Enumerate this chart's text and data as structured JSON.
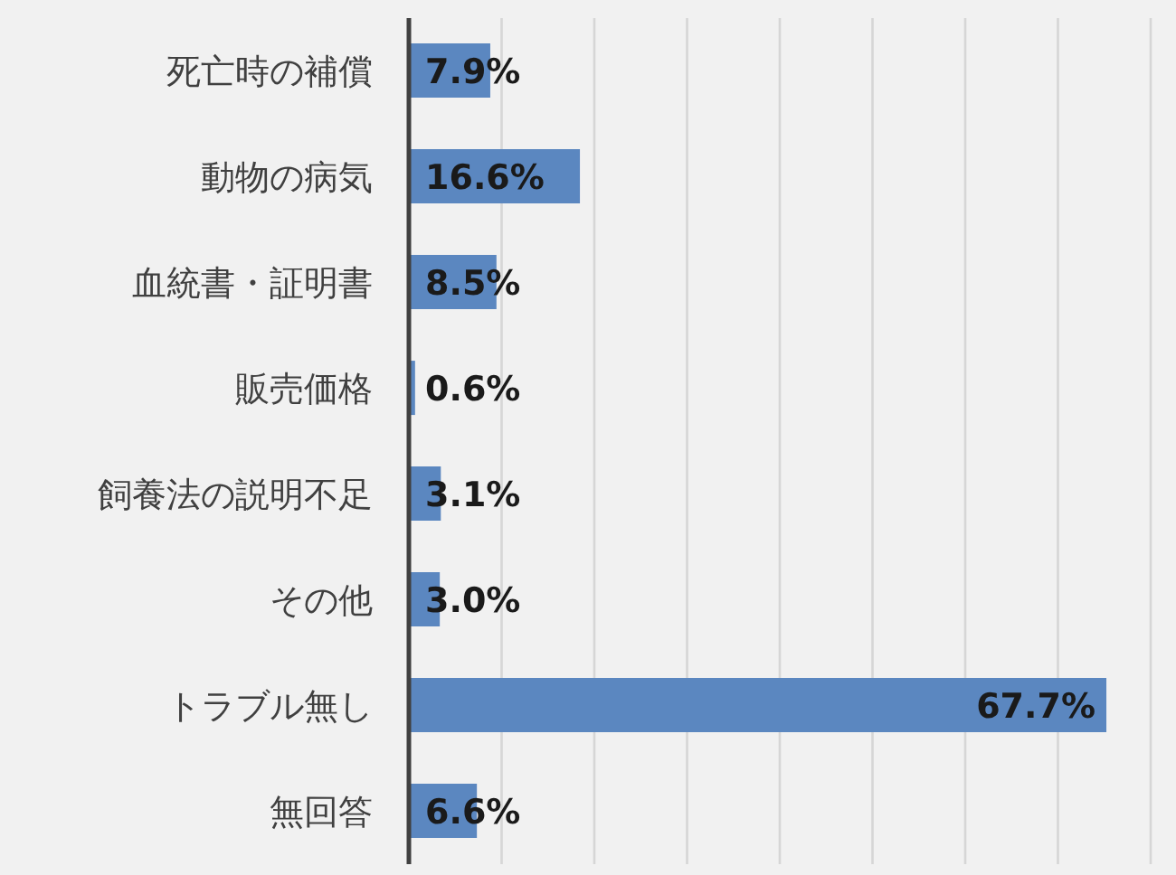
{
  "chart_data": {
    "type": "bar",
    "orientation": "horizontal",
    "categories": [
      "死亡時の補償",
      "動物の病気",
      "血統書・証明書",
      "販売価格",
      "飼養法の説明不足",
      "その他",
      "トラブル無し",
      "無回答"
    ],
    "values": [
      7.9,
      16.6,
      8.5,
      0.6,
      3.1,
      3.0,
      67.7,
      6.6
    ],
    "value_labels": [
      "7.9%",
      "16.6%",
      "8.5%",
      "0.6%",
      "3.1%",
      "3.0%",
      "67.7%",
      "6.6%"
    ],
    "color": "#5b87c0",
    "grid": "x",
    "tick_labels": "y"
  }
}
